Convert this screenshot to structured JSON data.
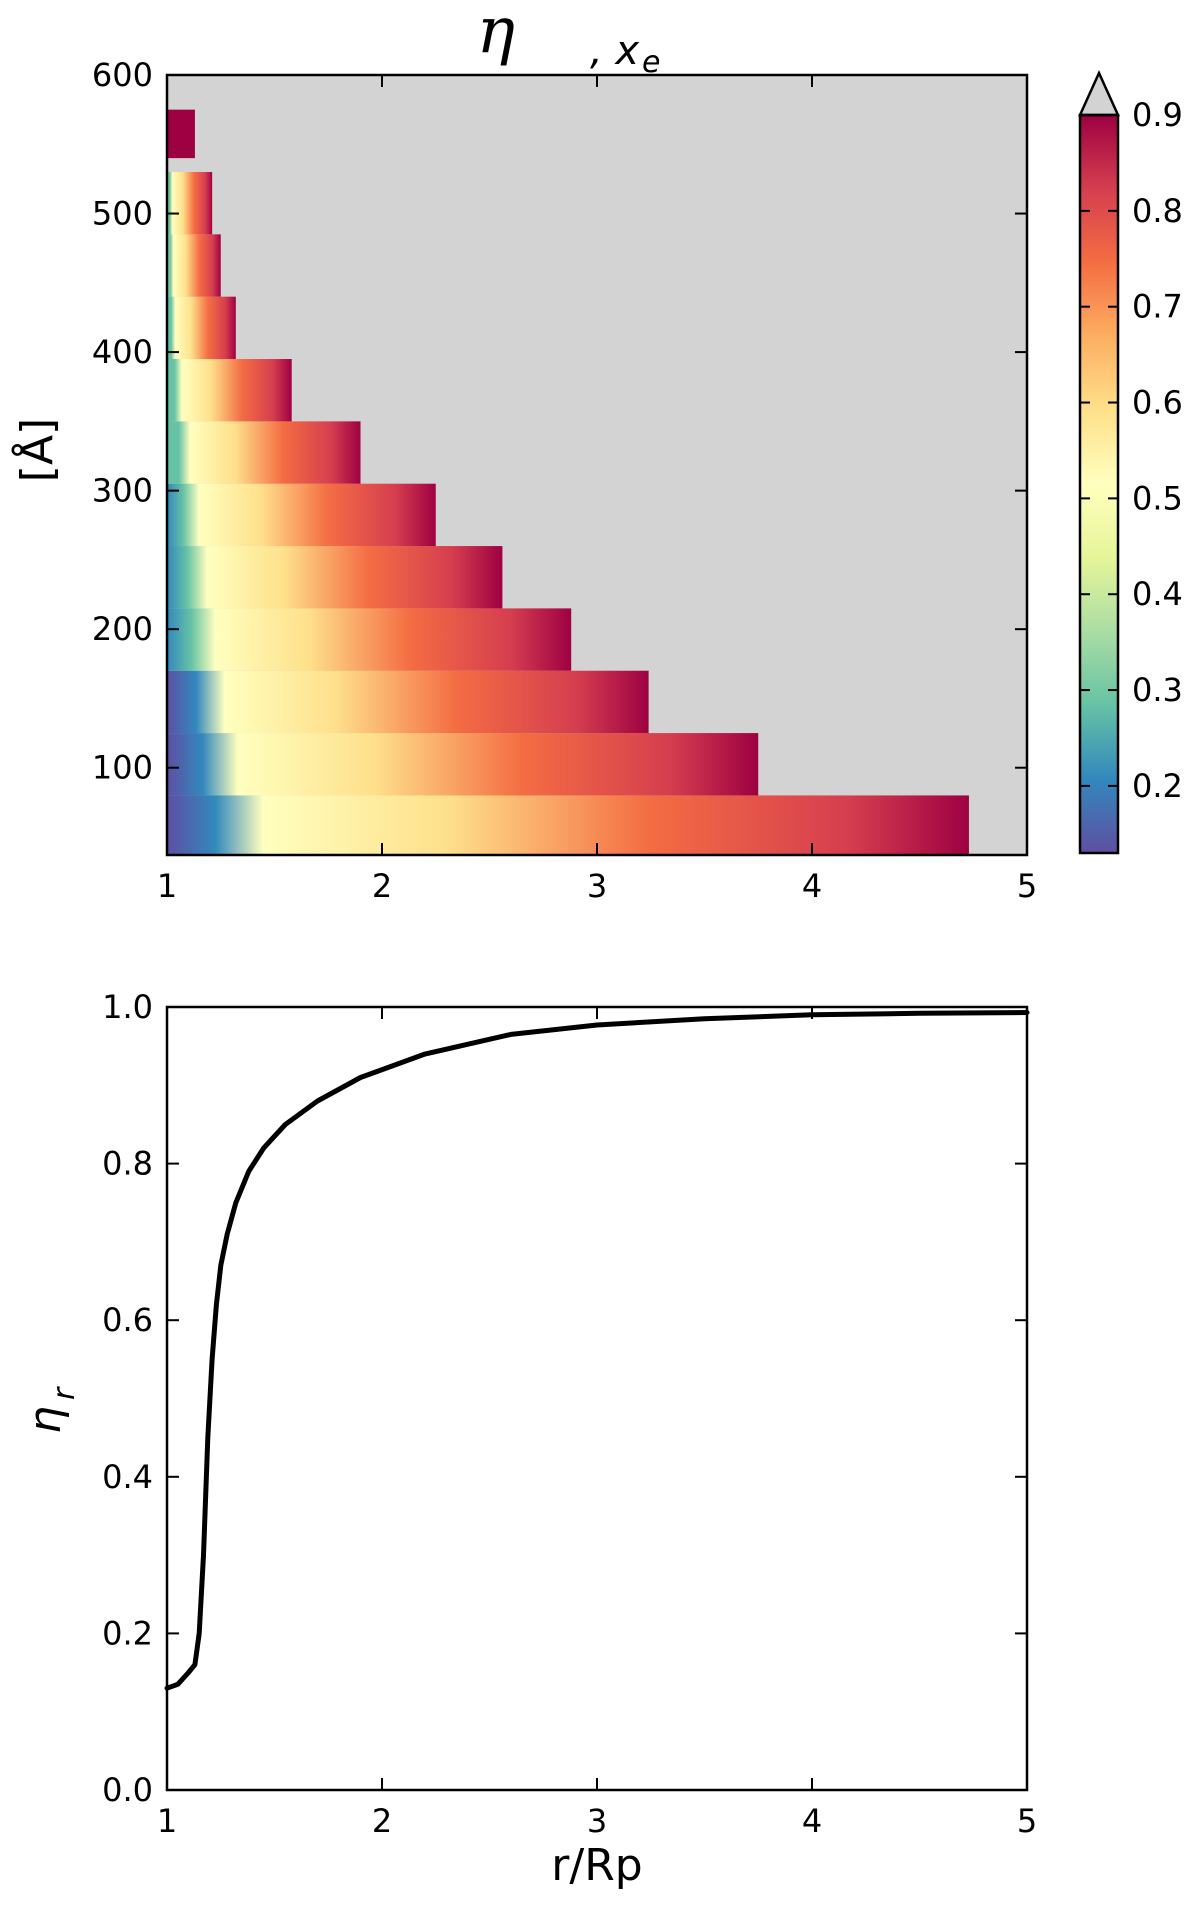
{
  "chart_data": [
    {
      "type": "heatmap",
      "title_symbol": "η",
      "title_subscript": ", x",
      "title_subsubscript": "e",
      "xlabel": "",
      "ylabel": "[Å]",
      "xlim": [
        1,
        5
      ],
      "ylim": [
        37,
        600
      ],
      "xticks": [
        "1",
        "2",
        "3",
        "4",
        "5"
      ],
      "yticks": [
        "100",
        "200",
        "300",
        "400",
        "500",
        "600"
      ],
      "ytick_values": [
        100,
        200,
        300,
        400,
        500,
        600
      ],
      "background_color": "#d3d3d3",
      "colormap": "Spectral_r",
      "colorbar": {
        "range": [
          0.13,
          0.9
        ],
        "ticks": [
          "0.2",
          "0.3",
          "0.4",
          "0.5",
          "0.6",
          "0.7",
          "0.8",
          "0.9"
        ],
        "tick_values": [
          0.2,
          0.3,
          0.4,
          0.5,
          0.6,
          0.7,
          0.8,
          0.9
        ],
        "extend": "max",
        "extend_color": "#d3d3d3"
      },
      "bands": [
        {
          "y_low": 37,
          "y_high": 80,
          "x_max": 4.73
        },
        {
          "y_low": 80,
          "y_high": 125,
          "x_max": 3.75
        },
        {
          "y_low": 125,
          "y_high": 170,
          "x_max": 3.24
        },
        {
          "y_low": 170,
          "y_high": 215,
          "x_max": 2.88
        },
        {
          "y_low": 215,
          "y_high": 260,
          "x_max": 2.56
        },
        {
          "y_low": 260,
          "y_high": 305,
          "x_max": 2.25
        },
        {
          "y_low": 305,
          "y_high": 350,
          "x_max": 1.9
        },
        {
          "y_low": 350,
          "y_high": 395,
          "x_max": 1.58
        },
        {
          "y_low": 395,
          "y_high": 440,
          "x_max": 1.32
        },
        {
          "y_low": 440,
          "y_high": 485,
          "x_max": 1.25
        },
        {
          "y_low": 485,
          "y_high": 530,
          "x_max": 1.21
        },
        {
          "y_low": 540,
          "y_high": 575,
          "x_max": 1.13
        }
      ]
    },
    {
      "type": "line",
      "xlabel": "r/Rp",
      "ylabel": "η",
      "ylabel_subscript": "r",
      "xlim": [
        1,
        5
      ],
      "ylim": [
        0,
        1
      ],
      "xticks": [
        "1",
        "2",
        "3",
        "4",
        "5"
      ],
      "yticks": [
        "0.0",
        "0.2",
        "0.4",
        "0.6",
        "0.8",
        "1.0"
      ],
      "ytick_values": [
        0,
        0.2,
        0.4,
        0.6,
        0.8,
        1.0
      ],
      "series": [
        {
          "color": "#000000",
          "x": [
            1.0,
            1.05,
            1.1,
            1.13,
            1.15,
            1.17,
            1.19,
            1.21,
            1.23,
            1.25,
            1.28,
            1.32,
            1.38,
            1.45,
            1.55,
            1.7,
            1.9,
            2.2,
            2.6,
            3.0,
            3.5,
            4.0,
            4.5,
            5.0
          ],
          "y": [
            0.13,
            0.135,
            0.15,
            0.16,
            0.2,
            0.3,
            0.45,
            0.55,
            0.62,
            0.67,
            0.71,
            0.75,
            0.79,
            0.82,
            0.85,
            0.88,
            0.91,
            0.94,
            0.965,
            0.977,
            0.985,
            0.99,
            0.992,
            0.993
          ]
        }
      ]
    }
  ]
}
